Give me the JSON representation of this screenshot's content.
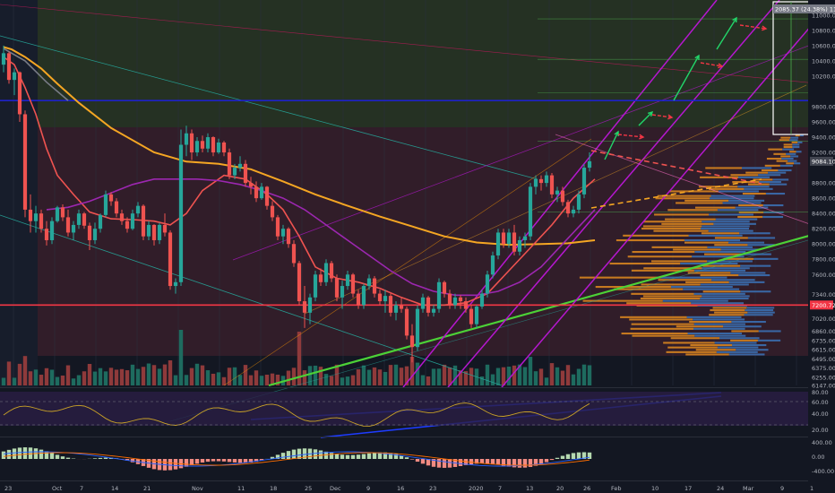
{
  "chart_data": {
    "type": "candlestick",
    "main": {
      "ylim": [
        6147,
        11150
      ],
      "y_ticks": [
        "11000.00",
        "10800.00",
        "10600.00",
        "10400.00",
        "10200.00",
        "9800.00",
        "9600.00",
        "9400.00",
        "9200.00",
        "8800.00",
        "8600.00",
        "8400.00",
        "8200.00",
        "8000.00",
        "7800.00",
        "7600.00",
        "7340.00",
        "7020.00",
        "6860.00",
        "6735.00",
        "6615.00",
        "6495.00",
        "6375.00",
        "6255.00",
        "6147.00"
      ],
      "price_tags": [
        {
          "text": "9084.10",
          "value": 9084.1,
          "color": "#434651"
        },
        {
          "text": "7200.72",
          "value": 7200.72,
          "color": "#f23645"
        },
        {
          "text": "2085.37 (24.38%) 11B",
          "value": 11080,
          "color": "#787b86"
        }
      ],
      "horizontal_levels": [
        {
          "value": 9880,
          "color": "#1e22c9"
        },
        {
          "value": 7200,
          "color": "#f23645"
        }
      ],
      "candles": [
        [
          10350,
          10600,
          10250,
          10500
        ],
        [
          10500,
          10520,
          10100,
          10150
        ],
        [
          10150,
          10300,
          9950,
          10250
        ],
        [
          10250,
          10260,
          9600,
          9700
        ],
        [
          9700,
          9750,
          8350,
          8450
        ],
        [
          8450,
          8650,
          8150,
          8300
        ],
        [
          8300,
          8500,
          8150,
          8400
        ],
        [
          8400,
          8450,
          8150,
          8200
        ],
        [
          8200,
          8300,
          7980,
          8050
        ],
        [
          8050,
          8350,
          8000,
          8300
        ],
        [
          8300,
          8500,
          8280,
          8480
        ],
        [
          8480,
          8520,
          8300,
          8350
        ],
        [
          8350,
          8450,
          8100,
          8150
        ],
        [
          8150,
          8300,
          8050,
          8250
        ],
        [
          8250,
          8450,
          8200,
          8400
        ],
        [
          8400,
          8420,
          8200,
          8240
        ],
        [
          8240,
          8280,
          7920,
          8050
        ],
        [
          8050,
          8280,
          8000,
          8200
        ],
        [
          8200,
          8400,
          8150,
          8380
        ],
        [
          8380,
          8700,
          8350,
          8650
        ],
        [
          8650,
          8680,
          8500,
          8560
        ],
        [
          8560,
          8600,
          8350,
          8400
        ],
        [
          8400,
          8450,
          8250,
          8300
        ],
        [
          8300,
          8350,
          8150,
          8200
        ],
        [
          8200,
          8450,
          8180,
          8400
        ],
        [
          8400,
          8550,
          8350,
          8500
        ],
        [
          8500,
          8520,
          8050,
          8100
        ],
        [
          8100,
          8300,
          8050,
          8250
        ],
        [
          8250,
          8260,
          7980,
          8050
        ],
        [
          8050,
          8280,
          8000,
          8250
        ],
        [
          8250,
          8400,
          8100,
          8150
        ],
        [
          8150,
          8180,
          7400,
          7450
        ],
        [
          7450,
          7550,
          7350,
          7500
        ],
        [
          7500,
          9500,
          7450,
          9300
        ],
        [
          9300,
          9550,
          9150,
          9450
        ],
        [
          9450,
          9500,
          9100,
          9200
        ],
        [
          9200,
          9400,
          9150,
          9350
        ],
        [
          9350,
          9420,
          9200,
          9250
        ],
        [
          9250,
          9450,
          9200,
          9400
        ],
        [
          9400,
          9410,
          9150,
          9200
        ],
        [
          9200,
          9380,
          9180,
          9330
        ],
        [
          9330,
          9350,
          9150,
          9200
        ],
        [
          9200,
          9250,
          8850,
          8900
        ],
        [
          8900,
          9050,
          8850,
          9000
        ],
        [
          9000,
          9150,
          8950,
          9050
        ],
        [
          9050,
          9100,
          8750,
          8800
        ],
        [
          8800,
          8880,
          8650,
          8750
        ],
        [
          8750,
          8820,
          8550,
          8600
        ],
        [
          8600,
          8800,
          8580,
          8750
        ],
        [
          8750,
          8760,
          8450,
          8500
        ],
        [
          8500,
          8560,
          8300,
          8350
        ],
        [
          8350,
          8380,
          8050,
          8100
        ],
        [
          8100,
          8250,
          8000,
          8200
        ],
        [
          8200,
          8220,
          7950,
          8000
        ],
        [
          8000,
          8050,
          7700,
          7750
        ],
        [
          7750,
          7780,
          7200,
          7250
        ],
        [
          7250,
          7450,
          6900,
          7100
        ],
        [
          7100,
          7350,
          6950,
          7300
        ],
        [
          7300,
          7650,
          7250,
          7600
        ],
        [
          7600,
          7680,
          7450,
          7500
        ],
        [
          7500,
          7800,
          7450,
          7750
        ],
        [
          7750,
          7780,
          7500,
          7550
        ],
        [
          7550,
          7600,
          7250,
          7300
        ],
        [
          7300,
          7520,
          7150,
          7450
        ],
        [
          7450,
          7650,
          7400,
          7600
        ],
        [
          7600,
          7620,
          7300,
          7350
        ],
        [
          7350,
          7400,
          7150,
          7200
        ],
        [
          7200,
          7480,
          7150,
          7450
        ],
        [
          7450,
          7600,
          7400,
          7550
        ],
        [
          7550,
          7580,
          7300,
          7350
        ],
        [
          7350,
          7400,
          7200,
          7250
        ],
        [
          7250,
          7400,
          7100,
          7320
        ],
        [
          7320,
          7350,
          7050,
          7100
        ],
        [
          7100,
          7250,
          7000,
          7200
        ],
        [
          7200,
          7300,
          7100,
          7150
        ],
        [
          7150,
          7180,
          6750,
          6800
        ],
        [
          6800,
          6950,
          6450,
          6650
        ],
        [
          6650,
          7200,
          6600,
          7150
        ],
        [
          7150,
          7350,
          7100,
          7300
        ],
        [
          7300,
          7320,
          7050,
          7100
        ],
        [
          7100,
          7200,
          7050,
          7150
        ],
        [
          7150,
          7550,
          7100,
          7500
        ],
        [
          7500,
          7520,
          7300,
          7350
        ],
        [
          7350,
          7400,
          7150,
          7200
        ],
        [
          7200,
          7350,
          7150,
          7300
        ],
        [
          7300,
          7330,
          7150,
          7250
        ],
        [
          7250,
          7300,
          7100,
          7150
        ],
        [
          7150,
          7200,
          6900,
          6950
        ],
        [
          6950,
          7200,
          6900,
          7180
        ],
        [
          7180,
          7400,
          7150,
          7350
        ],
        [
          7350,
          7650,
          7300,
          7600
        ],
        [
          7600,
          7900,
          7550,
          7850
        ],
        [
          7850,
          8200,
          7800,
          8150
        ],
        [
          8150,
          8200,
          7950,
          8000
        ],
        [
          8000,
          8200,
          7950,
          8150
        ],
        [
          8150,
          8250,
          7850,
          7900
        ],
        [
          7900,
          8100,
          7850,
          8050
        ],
        [
          8050,
          8150,
          7950,
          8100
        ],
        [
          8100,
          8800,
          8050,
          8750
        ],
        [
          8750,
          8900,
          8650,
          8850
        ],
        [
          8850,
          8900,
          8700,
          8800
        ],
        [
          8800,
          8950,
          8750,
          8900
        ],
        [
          8900,
          8930,
          8600,
          8650
        ],
        [
          8650,
          8750,
          8550,
          8700
        ],
        [
          8700,
          8750,
          8500,
          8550
        ],
        [
          8550,
          8580,
          8350,
          8400
        ],
        [
          8400,
          8500,
          8350,
          8450
        ],
        [
          8450,
          8700,
          8400,
          8650
        ],
        [
          8650,
          9050,
          8600,
          9000
        ],
        [
          9000,
          9200,
          8950,
          9084
        ]
      ],
      "overlay_lines": [
        {
          "name": "orange MA",
          "color": "#f5a623",
          "points": [
            [
              0,
              10580
            ],
            [
              1.5,
              10550
            ],
            [
              4,
              10450
            ],
            [
              7,
              10300
            ],
            [
              10,
              10100
            ],
            [
              14,
              9850
            ],
            [
              20,
              9520
            ],
            [
              28,
              9200
            ],
            [
              34,
              9080
            ],
            [
              40,
              9050
            ],
            [
              46,
              8980
            ],
            [
              52,
              8820
            ],
            [
              58,
              8650
            ],
            [
              64,
              8500
            ],
            [
              70,
              8360
            ],
            [
              76,
              8230
            ],
            [
              82,
              8100
            ],
            [
              88,
              8020
            ],
            [
              94,
              7990
            ],
            [
              100,
              8000
            ],
            [
              105,
              8010
            ],
            [
              110,
              8050
            ]
          ]
        },
        {
          "name": "grey MA",
          "color": "#787b86",
          "points": [
            [
              0,
              10560
            ],
            [
              4,
              10400
            ],
            [
              8,
              10120
            ],
            [
              12,
              9880
            ]
          ]
        },
        {
          "name": "red MA",
          "color": "#ef5350",
          "points": [
            [
              0,
              10450
            ],
            [
              2,
              10350
            ],
            [
              4,
              10050
            ],
            [
              6,
              9700
            ],
            [
              8,
              9250
            ],
            [
              10,
              8900
            ],
            [
              13,
              8650
            ],
            [
              16,
              8420
            ],
            [
              20,
              8330
            ],
            [
              24,
              8320
            ],
            [
              28,
              8300
            ],
            [
              31,
              8250
            ],
            [
              34,
              8400
            ],
            [
              37,
              8700
            ],
            [
              41,
              8900
            ],
            [
              45,
              8850
            ],
            [
              49,
              8650
            ],
            [
              52,
              8450
            ],
            [
              55,
              8100
            ],
            [
              58,
              7700
            ],
            [
              62,
              7550
            ],
            [
              66,
              7500
            ],
            [
              70,
              7420
            ],
            [
              74,
              7300
            ],
            [
              78,
              7200
            ],
            [
              82,
              7200
            ],
            [
              86,
              7230
            ],
            [
              90,
              7350
            ],
            [
              94,
              7650
            ],
            [
              98,
              7950
            ],
            [
              102,
              8250
            ],
            [
              106,
              8600
            ],
            [
              110,
              8850
            ]
          ]
        },
        {
          "name": "purple MA",
          "color": "#9c27b0",
          "points": [
            [
              8,
              8450
            ],
            [
              12,
              8480
            ],
            [
              16,
              8560
            ],
            [
              20,
              8670
            ],
            [
              24,
              8780
            ],
            [
              28,
              8850
            ],
            [
              32,
              8850
            ],
            [
              36,
              8850
            ],
            [
              40,
              8830
            ],
            [
              44,
              8780
            ],
            [
              48,
              8700
            ],
            [
              52,
              8600
            ],
            [
              56,
              8450
            ],
            [
              60,
              8250
            ],
            [
              64,
              8050
            ],
            [
              68,
              7850
            ],
            [
              72,
              7650
            ],
            [
              76,
              7480
            ],
            [
              80,
              7380
            ],
            [
              84,
              7330
            ],
            [
              88,
              7330
            ],
            [
              92,
              7380
            ],
            [
              96,
              7500
            ],
            [
              100,
              7700
            ],
            [
              104,
              8000
            ],
            [
              108,
              8300
            ],
            [
              110,
              8450
            ]
          ]
        }
      ],
      "future_arrows_colors": {
        "green": "#22d66a",
        "red": "#f23645"
      }
    },
    "x_ticks": [
      "23",
      "Oct",
      "7",
      "14",
      "21",
      "Nov",
      "11",
      "18",
      "25",
      "Dec",
      "9",
      "16",
      "23",
      "2020",
      "7",
      "13",
      "20",
      "26",
      "Feb",
      "10",
      "17",
      "24",
      "Mar",
      "9",
      "1"
    ],
    "rsi": {
      "y_ticks": [
        "80.00",
        "60.00",
        "40.00",
        "20.00"
      ],
      "ylim": [
        10,
        100
      ]
    },
    "macd": {
      "y_ticks": [
        "400.00",
        "0.00",
        "-400.00"
      ]
    },
    "colors": {
      "background": "#131722",
      "up": "#26a69a",
      "down": "#ef5350",
      "green_trend": "#4cd137",
      "blue_trend": "#1e3cff",
      "magenta_channel": "#b517cf"
    }
  }
}
